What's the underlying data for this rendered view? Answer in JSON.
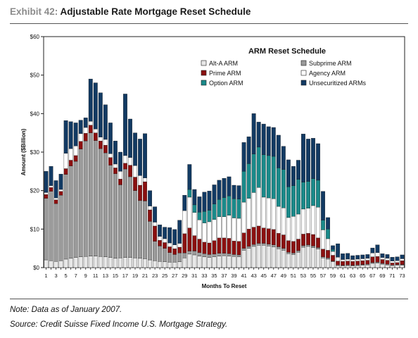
{
  "exhibit": {
    "label": "Exhibit 42:",
    "title": "Adjustable Rate Mortgage Reset Schedule"
  },
  "footnotes": {
    "note": "Note: Data as of January 2007.",
    "source": "Source: Credit Suisse Fixed Income U.S. Mortgage Strategy."
  },
  "colors": {
    "alt_a": "#e8e8e8",
    "subprime": "#9b9b9b",
    "prime": "#8b1010",
    "agency": "#ffffff",
    "option": "#1a8a8a",
    "unsecuritized": "#123a63"
  },
  "chart_data": {
    "type": "bar",
    "stacked": true,
    "title": "ARM Reset Schedule",
    "xlabel": "Months To Reset",
    "ylabel": "Amount ($Billion)",
    "ylim": [
      0,
      60
    ],
    "yticks": [
      "$0",
      "$10",
      "$20",
      "$30",
      "$40",
      "$50",
      "$60"
    ],
    "grid": false,
    "legend": "top-right, inside plot",
    "categories": [
      "1",
      "2",
      "3",
      "4",
      "5",
      "6",
      "7",
      "8",
      "9",
      "10",
      "11",
      "12",
      "13",
      "14",
      "15",
      "16",
      "17",
      "18",
      "19",
      "20",
      "21",
      "22",
      "23",
      "24",
      "25",
      "26",
      "27",
      "28",
      "29",
      "30",
      "31",
      "32",
      "33",
      "34",
      "35",
      "36",
      "37",
      "38",
      "39",
      "40",
      "41",
      "42",
      "43",
      "44",
      "45",
      "46",
      "47",
      "48",
      "49",
      "50",
      "51",
      "52",
      "53",
      "54",
      "55",
      "56",
      "57",
      "58",
      "59",
      "60",
      "61",
      "62",
      "63",
      "64",
      "65",
      "66",
      "67",
      "68",
      "69",
      "70",
      "71",
      "72",
      "73"
    ],
    "xtick_labels": [
      "1",
      "3",
      "5",
      "7",
      "9",
      "11",
      "13",
      "15",
      "17",
      "19",
      "21",
      "23",
      "25",
      "27",
      "29",
      "31",
      "33",
      "35",
      "37",
      "39",
      "41",
      "43",
      "45",
      "47",
      "49",
      "51",
      "53",
      "55",
      "57",
      "59",
      "61",
      "63",
      "65",
      "67",
      "69",
      "71",
      "73"
    ],
    "series": [
      {
        "name": "Alt-A ARM",
        "values": [
          2.0,
          1.8,
          1.6,
          1.8,
          2.2,
          2.4,
          2.6,
          2.8,
          2.9,
          3.0,
          3.0,
          2.9,
          2.8,
          2.6,
          2.4,
          2.5,
          2.6,
          2.6,
          2.5,
          2.4,
          2.3,
          2.0,
          1.8,
          1.6,
          1.5,
          1.4,
          1.4,
          1.5,
          2.5,
          3.5,
          3.3,
          3.0,
          2.8,
          2.6,
          2.8,
          3.0,
          3.1,
          3.0,
          2.9,
          2.8,
          4.5,
          5.0,
          5.5,
          5.8,
          5.8,
          5.6,
          5.4,
          4.9,
          4.5,
          3.6,
          3.4,
          4.0,
          5.3,
          5.5,
          5.2,
          4.8,
          2.5,
          2.2,
          1.5,
          0.5,
          0.4,
          0.5,
          0.4,
          0.5,
          0.6,
          0.7,
          1.1,
          1.2,
          0.9,
          0.7,
          0.5,
          0.6,
          0.6
        ]
      },
      {
        "name": "Subprime ARM",
        "values": [
          16.0,
          18.0,
          15.0,
          17.0,
          22.0,
          24.0,
          25.0,
          28.0,
          30.0,
          32.0,
          30.0,
          28.0,
          27.0,
          24.0,
          22.0,
          19.0,
          23.0,
          21.0,
          17.5,
          15.0,
          15.0,
          10.0,
          5.0,
          4.0,
          3.5,
          2.5,
          2.0,
          2.3,
          1.3,
          0.8,
          1.0,
          0.9,
          0.8,
          0.8,
          0.7,
          0.7,
          0.6,
          0.6,
          0.5,
          0.5,
          0.5,
          0.5,
          0.5,
          0.5,
          0.5,
          0.5,
          0.5,
          0.5,
          0.5,
          0.4,
          0.4,
          0.4,
          0.4,
          0.4,
          0.4,
          0.4,
          0.3,
          0.3,
          0.2,
          0.2,
          0.2,
          0.2,
          0.2,
          0.2,
          0.2,
          0.2,
          0.2,
          0.2,
          0.2,
          0.2,
          0.2,
          0.2,
          0.2
        ]
      },
      {
        "name": "Prime ARM",
        "values": [
          1.0,
          1.0,
          1.0,
          1.0,
          1.5,
          1.5,
          1.5,
          2.0,
          2.0,
          2.0,
          2.0,
          2.0,
          2.0,
          2.0,
          1.5,
          1.5,
          1.5,
          3.0,
          3.5,
          4.0,
          5.0,
          3.0,
          4.0,
          1.5,
          1.5,
          1.5,
          1.5,
          1.5,
          5.0,
          6.0,
          4.0,
          3.5,
          3.0,
          3.0,
          3.5,
          4.0,
          4.0,
          4.0,
          3.5,
          3.5,
          4.0,
          4.5,
          4.5,
          4.5,
          4.0,
          4.0,
          4.0,
          3.5,
          3.5,
          3.0,
          3.0,
          3.0,
          3.0,
          3.0,
          3.0,
          2.5,
          2.0,
          2.0,
          1.5,
          1.0,
          1.0,
          1.0,
          1.0,
          1.0,
          1.0,
          1.0,
          1.5,
          1.5,
          1.0,
          1.0,
          0.5,
          0.5,
          1.0
        ]
      },
      {
        "name": "Agency ARM",
        "values": [
          0.5,
          0.5,
          0.5,
          0.5,
          4.0,
          3.0,
          2.5,
          2.0,
          1.5,
          1.0,
          1.0,
          1.0,
          1.5,
          1.0,
          1.0,
          2.0,
          2.0,
          2.0,
          3.0,
          2.5,
          1.0,
          1.0,
          1.0,
          1.0,
          1.0,
          1.0,
          1.0,
          1.0,
          6.0,
          8.0,
          6.0,
          5.0,
          5.0,
          5.5,
          5.5,
          5.5,
          5.5,
          6.0,
          6.0,
          6.0,
          8.0,
          8.0,
          9.0,
          10.0,
          8.0,
          8.0,
          8.0,
          7.0,
          7.0,
          6.0,
          6.5,
          6.5,
          6.5,
          6.5,
          7.5,
          8.0,
          5.0,
          3.0,
          1.0,
          1.0,
          0.5,
          0.5,
          0.5,
          0.5,
          0.5,
          0.5,
          1.0,
          1.0,
          0.5,
          0.5,
          0.5,
          0.5,
          0.5
        ]
      },
      {
        "name": "Option ARM",
        "values": [
          0,
          0,
          0,
          0,
          0,
          0,
          0,
          0,
          0,
          0,
          0,
          0,
          0,
          0,
          0,
          0,
          0,
          0,
          0,
          0,
          0,
          0,
          0,
          0,
          0,
          0,
          0,
          0,
          0,
          2.0,
          2.0,
          2.0,
          3.0,
          3.0,
          4.0,
          4.5,
          5.0,
          5.0,
          5.0,
          5.0,
          8.0,
          9.0,
          10.0,
          10.5,
          11.0,
          11.0,
          11.0,
          10.0,
          10.0,
          8.0,
          8.0,
          9.0,
          7.0,
          7.0,
          7.0,
          7.0,
          2.5,
          2.5,
          0.5,
          0,
          0,
          0,
          0,
          0,
          0,
          0,
          0,
          0,
          0,
          0,
          0,
          0,
          0
        ]
      },
      {
        "name": "Unsecuritized ARMs",
        "values": [
          5.5,
          5.0,
          4.5,
          4.0,
          8.5,
          7.0,
          6.0,
          3.5,
          2.5,
          11.0,
          12.0,
          11.5,
          9.0,
          8.0,
          6.0,
          5.0,
          16.0,
          10.0,
          8.5,
          9.5,
          11.5,
          4.0,
          4.0,
          3.0,
          3.0,
          4.0,
          4.0,
          6.0,
          4.0,
          6.5,
          4.0,
          4.0,
          5.0,
          5.0,
          5.0,
          5.0,
          5.0,
          5.0,
          3.5,
          3.5,
          7.5,
          7.0,
          10.5,
          6.5,
          8.0,
          7.5,
          7.5,
          8.5,
          6.0,
          7.0,
          5.0,
          5.0,
          12.5,
          11.0,
          10.5,
          9.5,
          7.5,
          3.0,
          1.0,
          3.5,
          1.5,
          1.5,
          1.0,
          1.0,
          1.0,
          1.0,
          1.3,
          2.0,
          1.0,
          1.0,
          1.0,
          1.0,
          1.0
        ]
      }
    ]
  }
}
